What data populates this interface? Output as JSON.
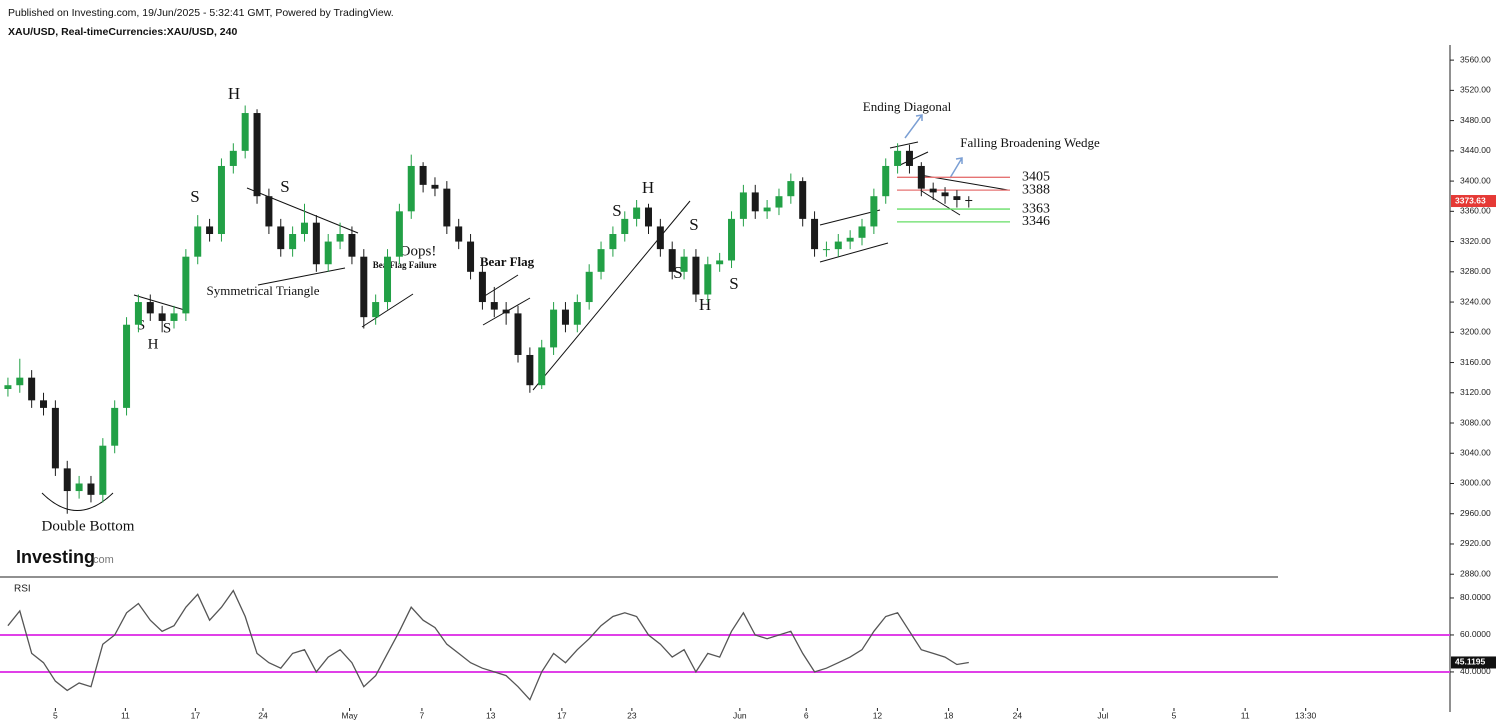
{
  "branding": {
    "name": "Investing",
    "suffix": ".com"
  },
  "chart_data": [
    {
      "type": "candlestick",
      "subtitle": "Published on Investing.com, 19/Jun/2025 - 5:32:41 GMT, Powered by TradingView.",
      "title": "XAU/USD, Real-timeCurrencies:XAU/USD, 240",
      "up_color": "#22a046",
      "down_color": "#1a1a1a",
      "last_color": "#e53935",
      "x": [
        1,
        2,
        3,
        4,
        5,
        6,
        7,
        8,
        9,
        10,
        11,
        12,
        13,
        14,
        15,
        16,
        17,
        18,
        19,
        20,
        21,
        22,
        23,
        24,
        25,
        26,
        27,
        28,
        29,
        30,
        31,
        32,
        33,
        34,
        35,
        36,
        37,
        38,
        39,
        40,
        41,
        42,
        43,
        44,
        45,
        46,
        47,
        48,
        49,
        50,
        51,
        52,
        53,
        54,
        55,
        56,
        57,
        58,
        59,
        60,
        61,
        62,
        63,
        64,
        65,
        66,
        67,
        68,
        69,
        70,
        71,
        72,
        73,
        74,
        75,
        76,
        77,
        78,
        79,
        80,
        81,
        82
      ],
      "open": [
        3125,
        3130,
        3140,
        3110,
        3100,
        3020,
        2990,
        3000,
        2985,
        3050,
        3100,
        3210,
        3240,
        3225,
        3215,
        3225,
        3300,
        3340,
        3330,
        3420,
        3440,
        3490,
        3380,
        3340,
        3310,
        3330,
        3345,
        3290,
        3320,
        3330,
        3300,
        3220,
        3240,
        3300,
        3360,
        3420,
        3395,
        3390,
        3340,
        3320,
        3280,
        3240,
        3230,
        3225,
        3170,
        3130,
        3180,
        3230,
        3210,
        3240,
        3280,
        3310,
        3330,
        3350,
        3365,
        3340,
        3310,
        3280,
        3300,
        3250,
        3290,
        3295,
        3350,
        3385,
        3360,
        3365,
        3380,
        3400,
        3350,
        3310,
        3310,
        3320,
        3325,
        3340,
        3380,
        3420,
        3440,
        3420,
        3390,
        3385,
        3380,
        3375
      ],
      "high": [
        3140,
        3165,
        3150,
        3120,
        3110,
        3030,
        3010,
        3010,
        3060,
        3110,
        3220,
        3250,
        3250,
        3235,
        3235,
        3310,
        3355,
        3350,
        3430,
        3450,
        3500,
        3495,
        3390,
        3350,
        3340,
        3370,
        3355,
        3330,
        3345,
        3340,
        3310,
        3250,
        3310,
        3370,
        3435,
        3425,
        3405,
        3400,
        3350,
        3330,
        3290,
        3260,
        3240,
        3235,
        3180,
        3190,
        3240,
        3240,
        3250,
        3290,
        3320,
        3340,
        3360,
        3375,
        3370,
        3350,
        3320,
        3310,
        3310,
        3300,
        3305,
        3360,
        3395,
        3395,
        3375,
        3390,
        3410,
        3405,
        3360,
        3320,
        3330,
        3335,
        3350,
        3390,
        3430,
        3450,
        3448,
        3425,
        3398,
        3392,
        3388,
        3380
      ],
      "low": [
        3115,
        3120,
        3100,
        3090,
        3010,
        2960,
        2980,
        2975,
        2975,
        3040,
        3090,
        3200,
        3215,
        3200,
        3205,
        3215,
        3290,
        3320,
        3320,
        3410,
        3430,
        3370,
        3330,
        3300,
        3300,
        3320,
        3280,
        3280,
        3310,
        3290,
        3205,
        3210,
        3230,
        3290,
        3350,
        3385,
        3380,
        3330,
        3310,
        3270,
        3230,
        3220,
        3210,
        3160,
        3120,
        3125,
        3170,
        3200,
        3200,
        3230,
        3270,
        3300,
        3320,
        3340,
        3330,
        3300,
        3270,
        3270,
        3240,
        3240,
        3280,
        3285,
        3340,
        3350,
        3350,
        3355,
        3370,
        3340,
        3300,
        3300,
        3300,
        3310,
        3315,
        3330,
        3370,
        3410,
        3410,
        3380,
        3375,
        3370,
        3365,
        3365
      ],
      "close": [
        3130,
        3140,
        3110,
        3100,
        3020,
        2990,
        3000,
        2985,
        3050,
        3100,
        3210,
        3240,
        3225,
        3215,
        3225,
        3300,
        3340,
        3330,
        3420,
        3440,
        3490,
        3380,
        3340,
        3310,
        3330,
        3345,
        3290,
        3320,
        3330,
        3300,
        3220,
        3240,
        3300,
        3360,
        3420,
        3395,
        3390,
        3340,
        3320,
        3280,
        3240,
        3230,
        3225,
        3170,
        3130,
        3180,
        3230,
        3210,
        3240,
        3280,
        3310,
        3330,
        3350,
        3365,
        3340,
        3310,
        3280,
        3300,
        3250,
        3290,
        3295,
        3350,
        3385,
        3360,
        3365,
        3380,
        3400,
        3350,
        3310,
        3310,
        3320,
        3325,
        3340,
        3380,
        3420,
        3440,
        3420,
        3390,
        3385,
        3380,
        3375,
        3373.63
      ],
      "xlim": [
        0.5,
        122.4
      ],
      "ylim": [
        2875,
        3580
      ],
      "yticks": [
        {
          "value": 3560,
          "label": "3560.00"
        },
        {
          "value": 3520,
          "label": "3520.00"
        },
        {
          "value": 3480,
          "label": "3480.00"
        },
        {
          "value": 3440,
          "label": "3440.00"
        },
        {
          "value": 3400,
          "label": "3400.00"
        },
        {
          "value": 3360,
          "label": "3360.00"
        },
        {
          "value": 3320,
          "label": "3320.00"
        },
        {
          "value": 3280,
          "label": "3280.00"
        },
        {
          "value": 3240,
          "label": "3240.00"
        },
        {
          "value": 3200,
          "label": "3200.00"
        },
        {
          "value": 3160,
          "label": "3160.00"
        },
        {
          "value": 3120,
          "label": "3120.00"
        },
        {
          "value": 3080,
          "label": "3080.00"
        },
        {
          "value": 3040,
          "label": "3040.00"
        },
        {
          "value": 3000,
          "label": "3000.00"
        },
        {
          "value": 2960,
          "label": "2960.00"
        },
        {
          "value": 2920,
          "label": "2920.00"
        },
        {
          "value": 2880,
          "label": "2880.00"
        }
      ],
      "levels": [
        {
          "value": 3405,
          "color": "#e57373"
        },
        {
          "value": 3388,
          "color": "#e57373"
        },
        {
          "value": 3363,
          "color": "#66dd66"
        },
        {
          "value": 3346,
          "color": "#66dd66"
        }
      ],
      "annotations": [
        "H",
        "S",
        "S",
        "S",
        "H",
        "S",
        "Double Bottom",
        "Symmetrical Triangle",
        "Oops!",
        "Bear",
        "Flag Failure",
        "Bear Flag",
        "S",
        "H",
        "S",
        "S",
        "H",
        "S",
        "Ending Diagonal",
        "Falling Broadening Wedge"
      ]
    },
    {
      "type": "line",
      "title": "RSI",
      "color": "#555555",
      "hline_color": "#e040e8",
      "value_box_color": "#111111",
      "x": [
        1,
        2,
        3,
        4,
        5,
        6,
        7,
        8,
        9,
        10,
        11,
        12,
        13,
        14,
        15,
        16,
        17,
        18,
        19,
        20,
        21,
        22,
        23,
        24,
        25,
        26,
        27,
        28,
        29,
        30,
        31,
        32,
        33,
        34,
        35,
        36,
        37,
        38,
        39,
        40,
        41,
        42,
        43,
        44,
        45,
        46,
        47,
        48,
        49,
        50,
        51,
        52,
        53,
        54,
        55,
        56,
        57,
        58,
        59,
        60,
        61,
        62,
        63,
        64,
        65,
        66,
        67,
        68,
        69,
        70,
        71,
        72,
        73,
        74,
        75,
        76,
        77,
        78,
        79,
        80,
        81,
        82
      ],
      "values": [
        65,
        73,
        50,
        45,
        35,
        30,
        34,
        32,
        55,
        60,
        72,
        77,
        68,
        62,
        65,
        75,
        82,
        68,
        75,
        84,
        70,
        50,
        45,
        42,
        50,
        52,
        40,
        48,
        52,
        45,
        32,
        38,
        50,
        62,
        75,
        68,
        64,
        55,
        50,
        45,
        42,
        40,
        38,
        32,
        25,
        40,
        50,
        45,
        52,
        58,
        65,
        70,
        72,
        70,
        60,
        55,
        48,
        52,
        40,
        50,
        48,
        62,
        72,
        60,
        58,
        60,
        62,
        50,
        40,
        42,
        45,
        48,
        52,
        62,
        70,
        72,
        62,
        52,
        50,
        48,
        44,
        45.1195
      ],
      "hlines": [
        60,
        40
      ],
      "xlim": [
        0.5,
        122.4
      ],
      "ylim": [
        20.5,
        90.8
      ],
      "yticks": [
        {
          "value": 80,
          "label": "80.0000"
        },
        {
          "value": 60,
          "label": "60.0000"
        },
        {
          "value": 40,
          "label": "40.0000"
        }
      ],
      "xticks": [
        {
          "value": 5,
          "label": "5"
        },
        {
          "value": 10.9,
          "label": "11"
        },
        {
          "value": 16.8,
          "label": "17"
        },
        {
          "value": 22.5,
          "label": "24"
        },
        {
          "value": 29.8,
          "label": "May"
        },
        {
          "value": 35.9,
          "label": "7"
        },
        {
          "value": 41.7,
          "label": "13"
        },
        {
          "value": 47.7,
          "label": "17"
        },
        {
          "value": 53.6,
          "label": "23"
        },
        {
          "value": 62.7,
          "label": "Jun"
        },
        {
          "value": 68.3,
          "label": "6"
        },
        {
          "value": 74.3,
          "label": "12"
        },
        {
          "value": 80.3,
          "label": "18"
        },
        {
          "value": 86.1,
          "label": "24"
        },
        {
          "value": 93.3,
          "label": "Jul"
        },
        {
          "value": 99.3,
          "label": "5"
        },
        {
          "value": 105.3,
          "label": "11"
        },
        {
          "value": 110.4,
          "label": "13:30"
        }
      ]
    }
  ]
}
